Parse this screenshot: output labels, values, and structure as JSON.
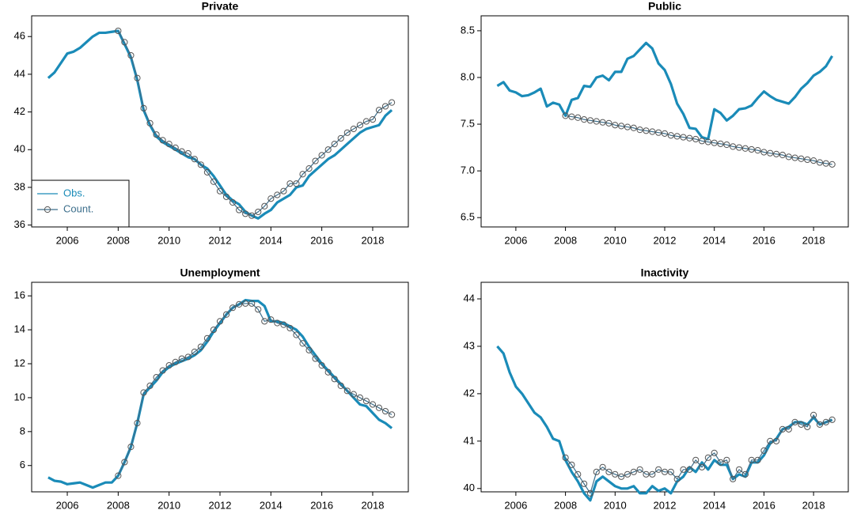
{
  "chart_data": [
    {
      "type": "line",
      "title": "Private",
      "x": [
        2005.25,
        2005.5,
        2005.75,
        2006,
        2006.25,
        2006.5,
        2006.75,
        2007,
        2007.25,
        2007.5,
        2007.75,
        2008,
        2008.25,
        2008.5,
        2008.75,
        2009,
        2009.25,
        2009.5,
        2009.75,
        2010,
        2010.25,
        2010.5,
        2010.75,
        2011,
        2011.25,
        2011.5,
        2011.75,
        2012,
        2012.25,
        2012.5,
        2012.75,
        2013,
        2013.25,
        2013.5,
        2013.75,
        2014,
        2014.25,
        2014.5,
        2014.75,
        2015,
        2015.25,
        2015.5,
        2015.75,
        2016,
        2016.25,
        2016.5,
        2016.75,
        2017,
        2017.25,
        2017.5,
        2017.75,
        2018,
        2018.25,
        2018.5,
        2018.75
      ],
      "series": [
        {
          "name": "Obs.",
          "color": "#1a8bb8",
          "values": [
            43.8,
            44.1,
            44.6,
            45.1,
            45.2,
            45.4,
            45.7,
            46.0,
            46.2,
            46.2,
            46.25,
            46.3,
            45.6,
            44.9,
            43.7,
            42.1,
            41.3,
            40.7,
            40.4,
            40.2,
            40.0,
            39.8,
            39.6,
            39.5,
            39.2,
            39.0,
            38.6,
            38.1,
            37.6,
            37.3,
            37.1,
            36.7,
            36.5,
            36.35,
            36.6,
            36.8,
            37.2,
            37.4,
            37.6,
            38.0,
            38.1,
            38.6,
            38.9,
            39.2,
            39.5,
            39.7,
            40.0,
            40.3,
            40.6,
            40.9,
            41.1,
            41.2,
            41.3,
            41.8,
            42.1
          ]
        },
        {
          "name": "Count.",
          "color": "#3d6f8c",
          "values": [
            null,
            null,
            null,
            null,
            null,
            null,
            null,
            null,
            null,
            null,
            null,
            46.3,
            45.7,
            45.0,
            43.8,
            42.2,
            41.4,
            40.8,
            40.5,
            40.3,
            40.1,
            39.9,
            39.8,
            39.5,
            39.2,
            38.8,
            38.3,
            37.8,
            37.5,
            37.2,
            36.8,
            36.6,
            36.5,
            36.7,
            37.0,
            37.4,
            37.6,
            37.8,
            38.2,
            38.2,
            38.7,
            39.0,
            39.4,
            39.7,
            40.0,
            40.3,
            40.6,
            40.9,
            41.1,
            41.3,
            41.5,
            41.6,
            42.1,
            42.3,
            42.5
          ]
        }
      ],
      "xlim": [
        2004.6,
        2019.4
      ],
      "xticks": [
        2006,
        2008,
        2010,
        2012,
        2014,
        2016,
        2018
      ],
      "ylim": [
        35.9,
        47.1
      ],
      "yticks": [
        36,
        38,
        40,
        42,
        44,
        46
      ],
      "legend": "bottomleft"
    },
    {
      "type": "line",
      "title": "Public",
      "x": [
        2005.25,
        2005.5,
        2005.75,
        2006,
        2006.25,
        2006.5,
        2006.75,
        2007,
        2007.25,
        2007.5,
        2007.75,
        2008,
        2008.25,
        2008.5,
        2008.75,
        2009,
        2009.25,
        2009.5,
        2009.75,
        2010,
        2010.25,
        2010.5,
        2010.75,
        2011,
        2011.25,
        2011.5,
        2011.75,
        2012,
        2012.25,
        2012.5,
        2012.75,
        2013,
        2013.25,
        2013.5,
        2013.75,
        2014,
        2014.25,
        2014.5,
        2014.75,
        2015,
        2015.25,
        2015.5,
        2015.75,
        2016,
        2016.25,
        2016.5,
        2016.75,
        2017,
        2017.25,
        2017.5,
        2017.75,
        2018,
        2018.25,
        2018.5,
        2018.75
      ],
      "series": [
        {
          "color": "#1a8bb8",
          "values": [
            7.91,
            7.95,
            7.86,
            7.84,
            7.8,
            7.81,
            7.84,
            7.88,
            7.69,
            7.73,
            7.71,
            7.59,
            7.76,
            7.78,
            7.91,
            7.9,
            8.0,
            8.02,
            7.97,
            8.06,
            8.06,
            8.2,
            8.23,
            8.3,
            8.37,
            8.31,
            8.15,
            8.08,
            7.93,
            7.72,
            7.61,
            7.46,
            7.45,
            7.36,
            7.34,
            7.66,
            7.62,
            7.54,
            7.59,
            7.66,
            7.67,
            7.7,
            7.78,
            7.85,
            7.8,
            7.76,
            7.74,
            7.72,
            7.79,
            7.88,
            7.94,
            8.02,
            8.06,
            8.12,
            8.23
          ]
        },
        {
          "color": "#3d6f8c",
          "values": [
            null,
            null,
            null,
            null,
            null,
            null,
            null,
            null,
            null,
            null,
            null,
            7.59,
            7.58,
            7.57,
            7.55,
            7.54,
            7.53,
            7.52,
            7.51,
            7.49,
            7.48,
            7.47,
            7.46,
            7.44,
            7.43,
            7.42,
            7.41,
            7.4,
            7.38,
            7.37,
            7.36,
            7.35,
            7.34,
            7.32,
            7.31,
            7.3,
            7.29,
            7.28,
            7.26,
            7.25,
            7.24,
            7.23,
            7.22,
            7.2,
            7.19,
            7.18,
            7.17,
            7.15,
            7.14,
            7.13,
            7.12,
            7.11,
            7.09,
            7.08,
            7.07
          ]
        }
      ],
      "xlim": [
        2004.6,
        2019.4
      ],
      "xticks": [
        2006,
        2008,
        2010,
        2012,
        2014,
        2016,
        2018
      ],
      "ylim": [
        6.4,
        8.66
      ],
      "yticks": [
        6.5,
        {
          "value": 7,
          "label": "7.0"
        },
        7.5,
        {
          "value": 8,
          "label": "8.0"
        },
        8.5
      ]
    },
    {
      "type": "line",
      "title": "Unemployment",
      "x": [
        2005.25,
        2005.5,
        2005.75,
        2006,
        2006.25,
        2006.5,
        2006.75,
        2007,
        2007.25,
        2007.5,
        2007.75,
        2008,
        2008.25,
        2008.5,
        2008.75,
        2009,
        2009.25,
        2009.5,
        2009.75,
        2010,
        2010.25,
        2010.5,
        2010.75,
        2011,
        2011.25,
        2011.5,
        2011.75,
        2012,
        2012.25,
        2012.5,
        2012.75,
        2013,
        2013.25,
        2013.5,
        2013.75,
        2014,
        2014.25,
        2014.5,
        2014.75,
        2015,
        2015.25,
        2015.5,
        2015.75,
        2016,
        2016.25,
        2016.5,
        2016.75,
        2017,
        2017.25,
        2017.5,
        2017.75,
        2018,
        2018.25,
        2018.5,
        2018.75
      ],
      "series": [
        {
          "color": "#1a8bb8",
          "values": [
            5.3,
            5.1,
            5.05,
            4.9,
            4.95,
            5.0,
            4.85,
            4.7,
            4.85,
            5.0,
            5.0,
            5.4,
            6.2,
            7.1,
            8.5,
            10.2,
            10.6,
            11.0,
            11.5,
            11.8,
            12.0,
            12.15,
            12.3,
            12.5,
            12.8,
            13.3,
            13.9,
            14.4,
            14.9,
            15.3,
            15.5,
            15.75,
            15.7,
            15.7,
            15.4,
            14.5,
            14.5,
            14.4,
            14.2,
            14.0,
            13.6,
            13.0,
            12.5,
            12.0,
            11.6,
            11.2,
            10.8,
            10.4,
            10.0,
            9.6,
            9.5,
            9.1,
            8.7,
            8.5,
            8.2
          ]
        },
        {
          "color": "#3d6f8c",
          "values": [
            null,
            null,
            null,
            null,
            null,
            null,
            null,
            null,
            null,
            null,
            null,
            5.4,
            6.2,
            7.1,
            8.5,
            10.3,
            10.7,
            11.2,
            11.6,
            11.9,
            12.1,
            12.3,
            12.4,
            12.7,
            13.0,
            13.5,
            14.0,
            14.5,
            14.9,
            15.3,
            15.5,
            15.55,
            15.55,
            15.2,
            14.5,
            14.6,
            14.4,
            14.3,
            14.1,
            13.7,
            13.2,
            12.8,
            12.3,
            11.9,
            11.5,
            11.1,
            10.7,
            10.4,
            10.2,
            10.0,
            9.8,
            9.6,
            9.4,
            9.2,
            9.0
          ]
        }
      ],
      "xlim": [
        2004.6,
        2019.4
      ],
      "xticks": [
        2006,
        2008,
        2010,
        2012,
        2014,
        2016,
        2018
      ],
      "ylim": [
        4.45,
        16.8
      ],
      "yticks": [
        6,
        8,
        10,
        12,
        14,
        16
      ]
    },
    {
      "type": "line",
      "title": "Inactivity",
      "x": [
        2005.25,
        2005.5,
        2005.75,
        2006,
        2006.25,
        2006.5,
        2006.75,
        2007,
        2007.25,
        2007.5,
        2007.75,
        2008,
        2008.25,
        2008.5,
        2008.75,
        2009,
        2009.25,
        2009.5,
        2009.75,
        2010,
        2010.25,
        2010.5,
        2010.75,
        2011,
        2011.25,
        2011.5,
        2011.75,
        2012,
        2012.25,
        2012.5,
        2012.75,
        2013,
        2013.25,
        2013.5,
        2013.75,
        2014,
        2014.25,
        2014.5,
        2014.75,
        2015,
        2015.25,
        2015.5,
        2015.75,
        2016,
        2016.25,
        2016.5,
        2016.75,
        2017,
        2017.25,
        2017.5,
        2017.75,
        2018,
        2018.25,
        2018.5,
        2018.75
      ],
      "series": [
        {
          "color": "#1a8bb8",
          "values": [
            43.0,
            42.85,
            42.45,
            42.15,
            42.0,
            41.8,
            41.6,
            41.5,
            41.3,
            41.05,
            41.0,
            40.6,
            40.35,
            40.15,
            39.9,
            39.75,
            40.15,
            40.25,
            40.15,
            40.05,
            40.0,
            40.0,
            40.05,
            39.9,
            39.9,
            40.05,
            39.95,
            40.0,
            39.9,
            40.15,
            40.25,
            40.45,
            40.35,
            40.55,
            40.4,
            40.6,
            40.5,
            40.5,
            40.2,
            40.3,
            40.25,
            40.55,
            40.55,
            40.7,
            40.95,
            41.05,
            41.25,
            41.3,
            41.4,
            41.4,
            41.35,
            41.5,
            41.35,
            41.4,
            41.45
          ]
        },
        {
          "color": "#3d6f8c",
          "values": [
            null,
            null,
            null,
            null,
            null,
            null,
            null,
            null,
            null,
            null,
            null,
            40.65,
            40.5,
            40.3,
            40.1,
            39.9,
            40.35,
            40.45,
            40.35,
            40.3,
            40.25,
            40.3,
            40.35,
            40.4,
            40.3,
            40.3,
            40.4,
            40.35,
            40.35,
            40.2,
            40.4,
            40.4,
            40.6,
            40.45,
            40.65,
            40.75,
            40.55,
            40.6,
            40.2,
            40.4,
            40.3,
            40.6,
            40.6,
            40.8,
            41.0,
            41.0,
            41.25,
            41.25,
            41.4,
            41.35,
            41.3,
            41.55,
            41.35,
            41.4,
            41.45
          ]
        }
      ],
      "xlim": [
        2004.6,
        2019.4
      ],
      "xticks": [
        2006,
        2008,
        2010,
        2012,
        2014,
        2016,
        2018
      ],
      "ylim": [
        39.93,
        44.35
      ],
      "yticks": [
        40,
        41,
        42,
        43,
        44
      ]
    }
  ]
}
